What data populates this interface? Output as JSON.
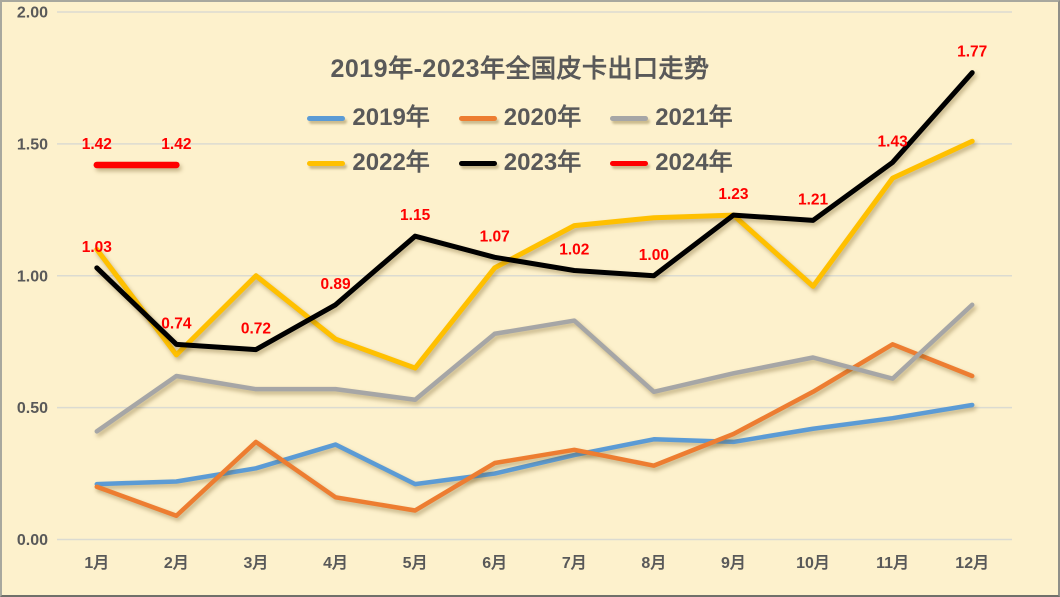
{
  "title": "2019年-2023年全国皮卡出口走势",
  "legend": {
    "rows": [
      [
        {
          "label": "2019年",
          "color": "#5B9BD5"
        },
        {
          "label": "2020年",
          "color": "#ED7D31"
        },
        {
          "label": "2021年",
          "color": "#A6A6A6"
        }
      ],
      [
        {
          "label": "2022年",
          "color": "#FFC000"
        },
        {
          "label": "2023年",
          "color": "#000000"
        },
        {
          "label": "2024年",
          "color": "#FF0000"
        }
      ]
    ]
  },
  "chart_data": {
    "type": "line",
    "title": "2019年-2023年全国皮卡出口走势",
    "categories": [
      "1月",
      "2月",
      "3月",
      "4月",
      "5月",
      "6月",
      "7月",
      "8月",
      "9月",
      "10月",
      "11月",
      "12月"
    ],
    "series": [
      {
        "name": "2019年",
        "color": "#5B9BD5",
        "stroke_width": 4.5,
        "values": [
          0.21,
          0.22,
          0.27,
          0.36,
          0.21,
          0.25,
          0.32,
          0.38,
          0.37,
          0.42,
          0.46,
          0.51
        ]
      },
      {
        "name": "2020年",
        "color": "#ED7D31",
        "stroke_width": 4.5,
        "values": [
          0.2,
          0.09,
          0.37,
          0.16,
          0.11,
          0.29,
          0.34,
          0.28,
          0.4,
          0.56,
          0.74,
          0.62
        ]
      },
      {
        "name": "2021年",
        "color": "#A6A6A6",
        "stroke_width": 4.5,
        "values": [
          0.41,
          0.62,
          0.57,
          0.57,
          0.53,
          0.78,
          0.83,
          0.56,
          0.63,
          0.69,
          0.61,
          0.89
        ]
      },
      {
        "name": "2022年",
        "color": "#FFC000",
        "stroke_width": 5,
        "values": [
          1.1,
          0.7,
          1.0,
          0.76,
          0.65,
          1.03,
          1.19,
          1.22,
          1.23,
          0.96,
          1.37,
          1.51
        ]
      },
      {
        "name": "2023年",
        "color": "#000000",
        "stroke_width": 5,
        "label_color": "#FF0000",
        "values": [
          1.03,
          0.74,
          0.72,
          0.89,
          1.15,
          1.07,
          1.02,
          1.0,
          1.23,
          1.21,
          1.43,
          1.77
        ],
        "data_labels": [
          "1.03",
          "0.74",
          "0.72",
          "0.89",
          "1.15",
          "1.07",
          "1.02",
          "1.00",
          "1.23",
          "1.21",
          "1.43",
          "1.77"
        ]
      },
      {
        "name": "2024年",
        "color": "#FF0000",
        "stroke_width": 6.5,
        "label_color": "#FF0000",
        "values": [
          1.42,
          1.42,
          null,
          null,
          null,
          null,
          null,
          null,
          null,
          null,
          null,
          null
        ],
        "data_labels": [
          "1.42",
          "1.42"
        ]
      }
    ],
    "y_axis": {
      "min": 0,
      "max": 2.0,
      "ticks": [
        {
          "label": "2.00",
          "value": 2.0
        },
        {
          "label": "1.50",
          "value": 1.5
        },
        {
          "label": "1.00",
          "value": 1.0
        },
        {
          "label": "0.50",
          "value": 0.5
        },
        {
          "label": "0.00",
          "value": 0.0
        }
      ]
    },
    "grid": true,
    "legend_position": "top-center"
  },
  "colors": {
    "background": "#FDF1CC",
    "gridline": "#DBDBD1",
    "axis_text": "#595959",
    "title_text": "#595959",
    "data_label": "#FF0000"
  }
}
